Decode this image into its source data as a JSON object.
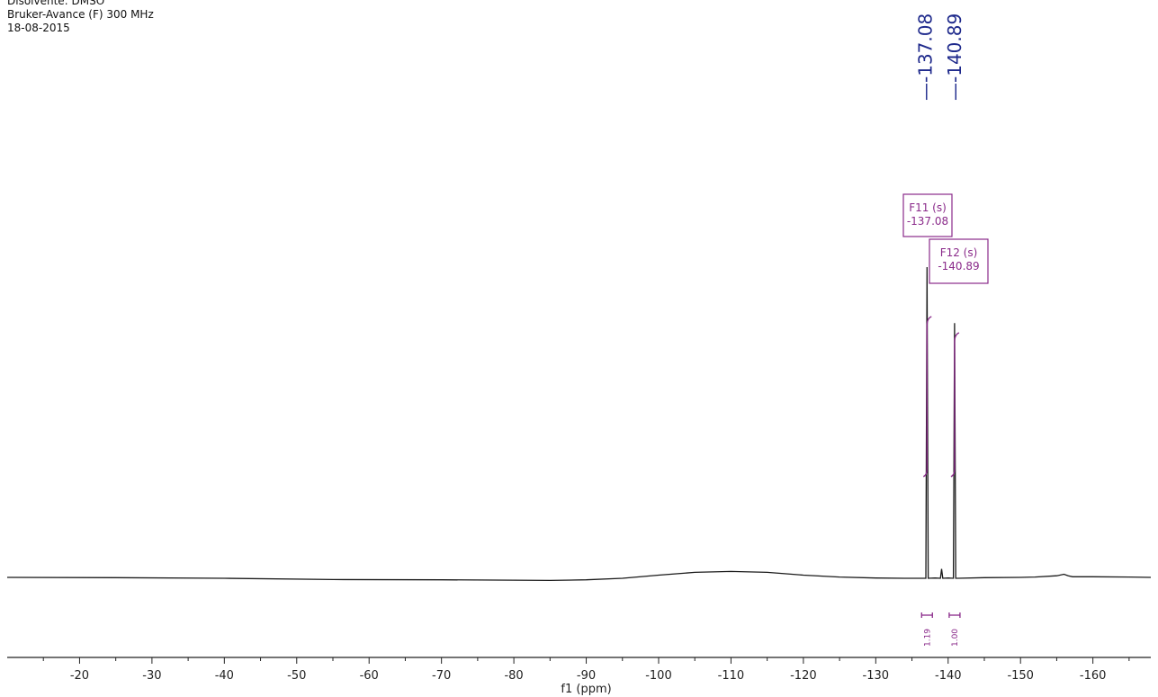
{
  "header": {
    "line1": "Disolvente: DMSO",
    "line2": "Bruker-Avance (F) 300 MHz",
    "line3": "18-08-2015"
  },
  "colors": {
    "spectrum": "#1a1a1a",
    "peak_label": "#1f2a8c",
    "annotation": "#8a2a8a",
    "axis": "#222222"
  },
  "chart_data": {
    "type": "line",
    "title": "",
    "xlabel": "f1 (ppm)",
    "ylabel": "",
    "xlim": [
      -10,
      -168
    ],
    "x_ticks": [
      -20,
      -30,
      -40,
      -50,
      -60,
      -70,
      -80,
      -90,
      -100,
      -110,
      -120,
      -130,
      -140,
      -150,
      -160
    ],
    "x_tick_labels": [
      "-20",
      "-30",
      "-40",
      "-50",
      "-60",
      "-70",
      "-80",
      "-90",
      "-100",
      "-110",
      "-120",
      "-130",
      "-140",
      "-150",
      "-160"
    ],
    "baseline_ppm": [
      -10,
      -25,
      -40,
      -55,
      -70,
      -80,
      -85,
      -90,
      -95,
      -100,
      -105,
      -110,
      -115,
      -120,
      -125,
      -130,
      -134,
      -136.5
    ],
    "baseline_intensity": [
      0.3,
      0.2,
      0.0,
      -0.4,
      -0.5,
      -0.6,
      -0.7,
      -0.5,
      0.0,
      1.0,
      1.9,
      2.2,
      1.9,
      1.0,
      0.4,
      0.1,
      0.0,
      0.0
    ],
    "tail_ppm": [
      -141.3,
      -145,
      -150,
      -152,
      -155,
      -156,
      -156.6,
      -157.2,
      -160,
      -165,
      -168
    ],
    "tail_intensity": [
      0.0,
      0.2,
      0.3,
      0.4,
      0.8,
      1.3,
      0.8,
      0.5,
      0.5,
      0.4,
      0.3
    ],
    "peaks": [
      {
        "ppm": -137.08,
        "intensity": 100,
        "label": "-137.08"
      },
      {
        "ppm": -139.1,
        "intensity": 3,
        "label": ""
      },
      {
        "ppm": -140.89,
        "intensity": 82,
        "label": "-140.89"
      }
    ],
    "multiplet_annotations": [
      {
        "name": "F11 (s)",
        "shift": "-137.08"
      },
      {
        "name": "F12 (s)",
        "shift": "-140.89"
      }
    ],
    "integrals": [
      {
        "ppm": -137.08,
        "value": "1.19"
      },
      {
        "ppm": -140.89,
        "value": "1.00"
      }
    ]
  }
}
